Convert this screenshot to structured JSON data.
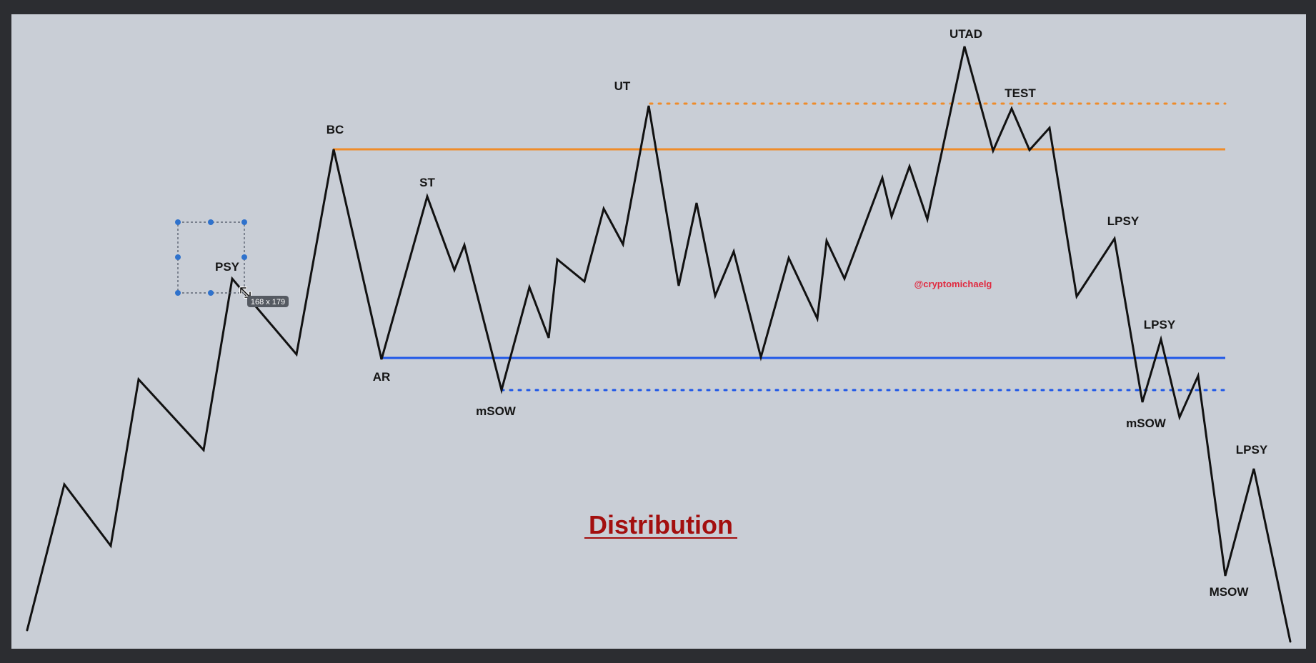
{
  "diagram": {
    "title": "Distribution",
    "watermark": "@cryptomichaelg",
    "selection_size": "168 x 179",
    "labels": {
      "psy": "PSY",
      "bc": "BC",
      "ar": "AR",
      "st": "ST",
      "msow_left": "mSOW",
      "ut": "UT",
      "utad": "UTAD",
      "test": "TEST",
      "lpsy_1": "LPSY",
      "lpsy_2": "LPSY",
      "msow_right": "mSOW",
      "lpsy_3": "LPSY",
      "msow_final": "MSOW"
    },
    "colors": {
      "canvas": "#c9ced6",
      "frame": "#2c2d31",
      "price_path": "#111111",
      "resistance": "#ef8c2a",
      "support": "#1e57e8",
      "title": "#a30f0f",
      "watermark": "#e0293f",
      "selection_handles": "#2f72cc",
      "size_tag": "#555a62"
    }
  }
}
